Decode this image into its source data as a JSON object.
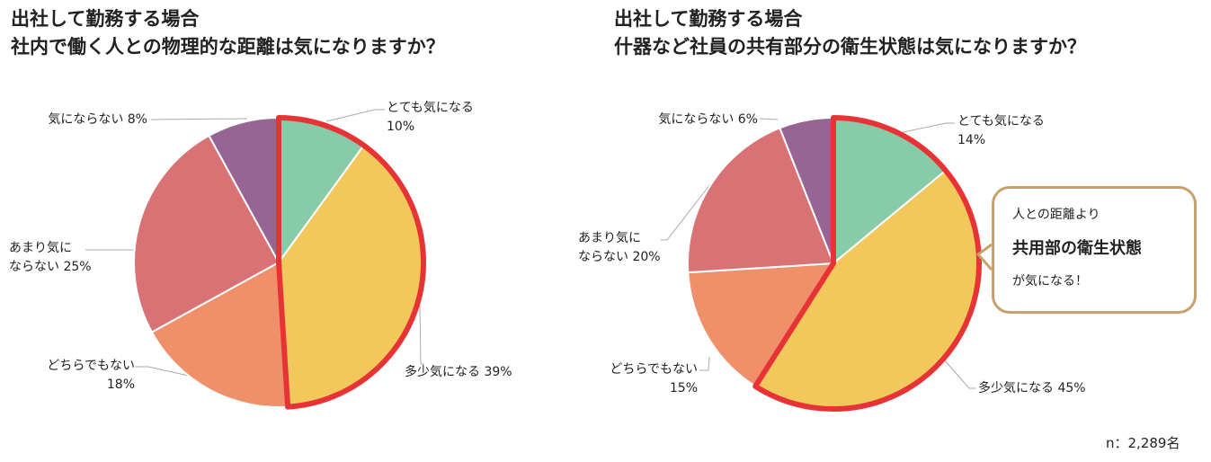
{
  "chart_data": [
    {
      "type": "pie",
      "title": [
        "出社して勤務する場合",
        "社内で働く人との物理的な距離は気になりますか？"
      ],
      "categories": [
        "とても気になる",
        "多少気になる",
        "どちらでもない",
        "あまり気にならない",
        "気にならない"
      ],
      "values": [
        10,
        39,
        18,
        25,
        8
      ],
      "labels": [
        [
          "とても気になる",
          "10%"
        ],
        [
          "多少気になる 39%"
        ],
        [
          "どちらでもない",
          "18%"
        ],
        [
          "あまり気に",
          "ならない 25%"
        ],
        [
          "気にならない 8%"
        ]
      ],
      "colors": [
        "#88CBA8",
        "#F2C85C",
        "#F0906A",
        "#D97274",
        "#966593"
      ],
      "highlight": {
        "slices": [
          "とても気になる",
          "多少気になる"
        ],
        "color": "#E83336"
      }
    },
    {
      "type": "pie",
      "title": [
        "出社して勤務する場合",
        "什器など社員の共有部分の衛生状態は気になりますか？"
      ],
      "categories": [
        "とても気になる",
        "多少気になる",
        "どちらでもない",
        "あまり気にならない",
        "気にならない"
      ],
      "values": [
        14,
        45,
        15,
        20,
        6
      ],
      "labels": [
        [
          "とても気になる",
          "14%"
        ],
        [
          "多少気になる 45%"
        ],
        [
          "どちらでもない",
          "15%"
        ],
        [
          "あまり気に",
          "ならない 20%"
        ],
        [
          "気にならない 6%"
        ]
      ],
      "colors": [
        "#88CBA8",
        "#F2C85C",
        "#F0906A",
        "#D97274",
        "#966593"
      ],
      "highlight": {
        "slices": [
          "とても気になる",
          "多少気になる"
        ],
        "color": "#E83336"
      },
      "callout": [
        "人との距離より",
        "共用部の衛生状態",
        "が気になる！"
      ]
    }
  ],
  "note": "n：2,289名"
}
